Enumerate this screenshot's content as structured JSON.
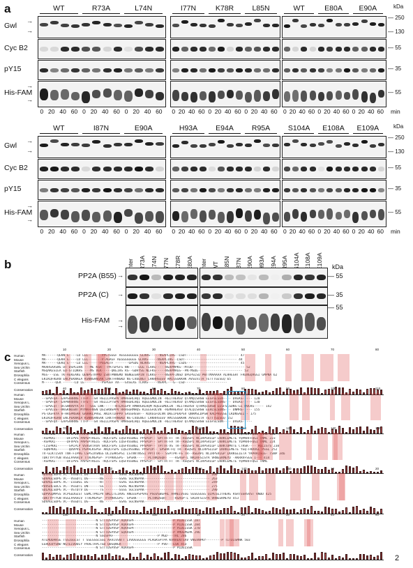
{
  "panel_labels": {
    "a": "a",
    "b": "b",
    "c": "c"
  },
  "kda": "kDa",
  "min": "min",
  "rows_a": [
    "Gwl",
    "Cyc B2",
    "pY15",
    "His-FAM"
  ],
  "a_top": {
    "groups": [
      [
        "WT",
        "R73A",
        "L74N"
      ],
      [
        "I77N",
        "K78R",
        "L85N"
      ],
      [
        "WT",
        "E80A",
        "E90A"
      ]
    ],
    "markers": [
      [
        "250",
        "130"
      ],
      [
        "55"
      ],
      [
        "35"
      ],
      [
        "55"
      ]
    ],
    "lanes": [
      "0",
      "20",
      "40",
      "60"
    ]
  },
  "a_bottom": {
    "groups": [
      [
        "WT",
        "I87N",
        "E90A"
      ],
      [
        "H93A",
        "E94A",
        "R95A"
      ],
      [
        "S104A",
        "E108A",
        "E109A"
      ]
    ],
    "markers": [
      [
        "250",
        "130"
      ],
      [
        "55"
      ],
      [
        "35"
      ],
      [
        "55"
      ]
    ]
  },
  "b": {
    "rows": [
      "PP2A (B55)",
      "PP2A (C)",
      "His-FAM"
    ],
    "lanes1": [
      "Inter",
      "R73A",
      "L74N",
      "I77N",
      "K78R",
      "E80A"
    ],
    "lanes2": [
      "Inter",
      "WT",
      "L85N",
      "I87N",
      "E90A",
      "H93A",
      "E94A",
      "R95A",
      "S104A",
      "E108A",
      "E109A"
    ],
    "markers": [
      "55",
      "35",
      "55"
    ]
  },
  "c": {
    "species": [
      "Human",
      "Mouse",
      "Xenopus L.",
      "Sea Urchin",
      "Starfish",
      "Drosophila",
      "C elegans",
      "Consensus"
    ],
    "conservation": "Conservation",
    "ticks": [
      "10",
      "20",
      "30",
      "40",
      "50",
      "60",
      "70",
      "80",
      "90",
      "100",
      "110",
      "120",
      "130",
      "140",
      "150"
    ],
    "block1": [
      "MA------QEKN  E----LD  LEL-------PPGTGGGF  AEGGGGGGGS  GLRRS-----NSAPLIHG--LSDT---------------------------  47",
      "MA------QEKH  E----LD  LEL-------P-AGAGF  AEGGGGGGGS  GLRRS-----NSAPLIHG--LSDT---------------------------  44",
      "MA------QEKQ  E----LD  LEL------PGGAGTF  -------GPSDG  NLRRS-----NSAPLVHG--LSDS---------------------------  45",
      "MAAHSAASNS DT-DSPLEKN  ---ME  KSR---PATSPSFS  NN-----EGG  TLARS-----NSAPMPKS--MTDD---------------------------  52",
      "MSQAKESIEA ED-STIQKHS  ---MS  VEK-----QKEIHS  RS--GDHYSG  NLFKS-----NSAPMAGS--PN-MSDE-----------------------  53",
      "MSS---ESE  TK-AEKEAKG  QENPSTVPMD  LSNTPNNGMD  NGNGEGRPIN  TLKKS-----NSAPFINSD  DPEPGLSQ  PWTTMAAAAA  ALHHEGHT  FRENGQVGGI  GMPNA  62",
      "EKIKQFREKN  ENCPEKNAEA  KSNNSANSAK  LRKTFRNGKD  NS-LVDENGT  LRKRHSGSV  AMISSGKKHK  AVSEVITA  TETTTGESEQ  65",
      "M------QEK  ------LD  LE---------PSPGGF  AX---GXSEXG  TLRRS-----NSAPL---G--LSD----------------------"
    ],
    "block2": [
      "--SPVFQA--EAPSARRNS  TTFP---SR  HSLLLPASPV  RMHSSRLHQI  KQEEGMDLIN  -REITHERSV  QTAMQISHSW  EESFSLSDN----  DVEKS-----  131",
      "--SPVFQA--EAPSARRNS  TTFP---SR  HSLLLPASPV  RMHSSRLHQI  KQEEGMDLIN  -REITHERSV  QTAMQISHSW  EESFSLSEN----  DVEKS-----  128",
      "--SPVFQA--EAPNARRNS  TTFS---SR  HSLLLPTSPV  RMHSGRLHQI  KQEEGMDLIN  -REITHERSV  QTAMQISHSW  EESFSLSDNS---  DVEKS-----  130",
      "--GPVLQT--DCSNRRVYA  AT---SSG  LNK------NTLASSPV  RMHRGRLHQM  KQEEGMDLIN  -REITHERSV  QTAMQISHSW  EESFSLSDNS-LE  DVEKS-----  142",
      "--EPVLGS--RKGKNGSNT  MTMAFFNSN  QGLSKNSPPV  RRHSGRMHQS  KIEEGFDLVN  -REMHHERSV  QTALQISHSW  EEHLSLSDNS---  DNMRS-----  155",
      "PS-DGFKYA  H-HRSPNSRR  GAHHKLPHSL  ANIATIHPPV  SASSHSSH--  KQVEGFDLVN  DKEIPEKPSV  QNAMSLDPSW  KALPHEGSE  LKDNSAEI--  175",
      "EKIKQFREKN  ENCPEKNAEA  KSNNSANSAK  LRKTFRNGKD  NS-LVDENGT  LRKRHSGSV  AMISSGKKHK  AVSEVITA  TETTTGESEQ  152",
      "--SPVFQX--EAPSARRNS  TTFP---SR  HSLLLPASPV  RMHSGRLHQI  KQEEGMDLIN  -REITHERSV  QTAMQISHSW  EESFSLSDN----  DVEKS-----"
    ],
    "block3": [
      "-ASPKRI------DFIPVS  PAPSPTRGIG  -KQCFSPS  LQSFVSSNGL  PPSPIP--  SPTTR-FT  TR--RSQSPI  NCIRPSVLGP  LKRKCEMETE  YQPKRFFQGI  TNML  226",
      "-ASPKRI------DFIPVS  PAPSPTRGIG  -KQCFSPS  LQSFVSSNGL  PPSPIP--  SPTTR-FT  TR--RSQSPI  NCIRPSVLGP  LKRKCEMETE  YQPKRFFQGI  TNML  223",
      "-ASPKRI------DFVPVS  PAPSPTRGIG  -KQCFSPS  LQSFVSSNGL  PPSPIP--  SPTTR-FA  TR--RSQSPI  NCIRPSVLGP  LKRKCEMETE  YQPKRFFQGI  TNML  224",
      "-CISPKRI------SPLPLP  VSVGRTAVA  SKQCFSPS  LQSFVSSNGL  PPSPVP--  TPTTR-VS  TR--RSQSPI  NCIRPSVLGP  LKRKTDMVTE  CTRSK----  RGLISTS  238",
      "-SQNPKRL------QDVPVS  PSPHLKSPSF  AKQCFSPS  LQGIVSSNGL  PPSPIP--  SPSRR-FQ  TR--RSQSPI  NCIRPSLLGP  LKRKLEMETE  YGQ-FKRVGL  PSSL  252",
      "TV-GLKTISVV  TNA-FIPHG  CSPSIVSNGS  DLIGAKSPSI  LSTNVTNSSI  PPTTTR--  SSPTPR-FS  TR--RSEAPI  NCIRPSVLGP  LKRKGEIETA  YRPRRISGS-  TSNP  346",
      "TDKTYPTYGN  HSGLPAAHIV  TTVEMSPSP-  PTPRRGSPS-  SPSRK-----  PLTRKDSQR-  ---RSASP-L  NRIRFSISYA  VRNEEKMEYD  -AKRRVFSGS  I---  414",
      "-ASPKRI------DFIPVS  PAPSPTRGIG  -KQCFSPS  LQSFVSSNGL  PPSPIP--  SPTTR-FT  TR--RSQSPI  NCIRPSVLGP  LKRKCEMETE  YQPKRFFQGI  TNML"
    ],
    "block4": [
      "SDVAGLSDPG  VC--VSSDTL  DG------NS  -------SSAG  SGCNSPAK----------------------------------  266",
      "SDVAGLSDPG  VC--VSSDTL  DG------NS  -------SSAG  SGCNSPAK----------------------------------  263",
      "SDVAGLSDPG  AC--LSSDGL  DG------NT  -------SSAG  SGCNSPAK----------------------------------  249",
      "PDVSHLSDLS  VC--VSSDTL  DN------SS  -------SSAG  NGCNSPAK----------------------------------  275",
      "SDLAGLSDPG  VC--VSTDTV  DE------TS  -------SSSG  SGCSSPAK----------------------------------  290",
      "SDPVGQMPSS  VCPGEDGEST  GSMLTPKLPV  BKLCTEIRVG  ANGSSPSPVAS  PSGVSBGPRL  AAMELVSSG  SGSGSGSG  QIPESEJTHERG  RSRTSSRSVST  VNDD  425",
      "TDKTYPTYGN  HSGLPAAHIV  TTVEMSPSP-  PTPRRGSPS-  SPSRK-----  PLTRKDSQR-  ---RSASP-L  SRIRFSISYA  VRNEEKMEYD  453",
      "SDVAGLSDPG  VC--VSSDTL  DG------NS  -------SSAG  SGCNSPAK----------------------------------"
    ],
    "block5": [
      "----------------------------N  STTTDSPVSP  AQAASPF--------------------P  PLDELSSK  287",
      "----------------------------N  STTTDSPVSP  AQAASPF--------------------P  PLDELSSK  284",
      "----------------------------N  STTTDSPVSP  AQAASPF--------------------P  PLDELSSK  270",
      "----------------------------N  STTTDSPVSP  SQAASPF--------------------P  PMDEMSPK  296",
      "----------------------------N  SSGSPAF-----------------------P  MGD---THL  286",
      "ATLMDDAKSE  TSSIGGCST  T  SSESSGCSGG  AAVIVSNTT  LVVDGSGGGS  PLAGKSPTPA  KVNHENTSAV  VNGVNPKY--------P  TITDISMNK  503",
      "EEHQGVYSND  NGTEIVDDLY  PAAETAPLTGD  QDGQNGR-----  -------------P  PVD---ESK  453",
      "----------------------------N  STTTDSPVSP  AQAASPF--------------------P  PLDELSSK"
    ]
  },
  "page_number": "2"
}
